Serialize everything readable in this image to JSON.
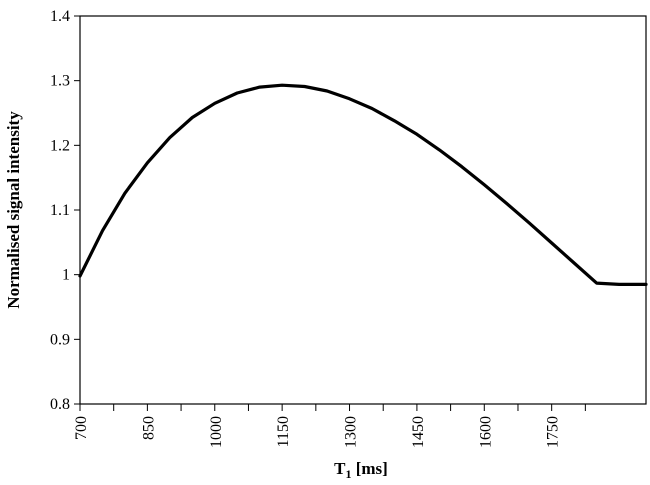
{
  "chart_data": {
    "type": "line",
    "title": "",
    "xlabel": "T",
    "xlabel_subscript": "1",
    "xlabel_unit": " [ms]",
    "ylabel": "Normalised signal intensity",
    "xlim": [
      700,
      1960
    ],
    "ylim": [
      0.8,
      1.4
    ],
    "grid": false,
    "x_ticks": [
      700,
      850,
      1000,
      1150,
      1300,
      1450,
      1600,
      1750
    ],
    "x_minor_ticks": [
      775,
      925,
      1075,
      1225,
      1375,
      1525,
      1675,
      1825
    ],
    "y_ticks": [
      0.8,
      0.9,
      1.0,
      1.1,
      1.2,
      1.3,
      1.4
    ],
    "x_tick_labels": [
      "700",
      "850",
      "1000",
      "1150",
      "1300",
      "1450",
      "1600",
      "1750"
    ],
    "y_tick_labels": [
      "0.8",
      "0.9",
      "1",
      "1.1",
      "1.2",
      "1.3",
      "1.4"
    ],
    "series": [
      {
        "x": [
          700,
          750,
          800,
          850,
          900,
          950,
          1000,
          1050,
          1100,
          1150,
          1200,
          1250,
          1300,
          1350,
          1400,
          1450,
          1500,
          1550,
          1600,
          1650,
          1700,
          1750,
          1800,
          1850,
          1900,
          1960
        ],
        "y": [
          0.998,
          1.068,
          1.126,
          1.173,
          1.212,
          1.243,
          1.265,
          1.281,
          1.29,
          1.293,
          1.291,
          1.284,
          1.272,
          1.257,
          1.238,
          1.217,
          1.193,
          1.167,
          1.139,
          1.11,
          1.08,
          1.049,
          1.018,
          0.987,
          0.985,
          0.985
        ]
      }
    ]
  }
}
